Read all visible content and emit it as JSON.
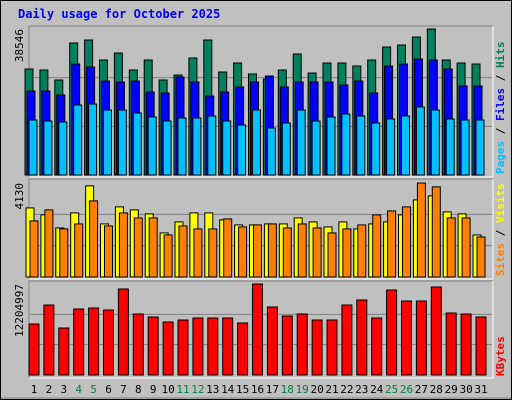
{
  "title": "Daily usage for October 2025",
  "separator": "/",
  "chart_data": [
    {
      "type": "bar",
      "ylim": [
        0,
        38546
      ],
      "yticks": [
        38546
      ],
      "series": [
        {
          "name": "Hits",
          "color": "#00805c",
          "values": [
            27984,
            27720,
            25080,
            34848,
            35640,
            30360,
            32208,
            27720,
            30360,
            25080,
            26400,
            30888,
            35640,
            27192,
            29568,
            26664,
            25344,
            27720,
            31944,
            26928,
            29568,
            29568,
            28776,
            30360,
            33792,
            34320,
            36432,
            38546,
            30360,
            29568,
            29304
          ]
        },
        {
          "name": "Files",
          "color": "#0000ff",
          "values": [
            22176,
            22176,
            21120,
            29304,
            28512,
            24816,
            24552,
            24816,
            21912,
            21648,
            25872,
            24552,
            20856,
            21912,
            23232,
            24552,
            26136,
            23232,
            24552,
            24552,
            24552,
            23760,
            24816,
            21648,
            28776,
            29304,
            30624,
            30360,
            27984,
            23496,
            23496
          ]
        },
        {
          "name": "Pages",
          "color": "#00c0ff",
          "values": [
            14520,
            14256,
            13992,
            18480,
            18744,
            17160,
            17160,
            16368,
            15312,
            14256,
            15048,
            15048,
            15576,
            14256,
            13200,
            17160,
            12408,
            13728,
            17160,
            14256,
            15312,
            16104,
            15576,
            13728,
            14784,
            15576,
            17952,
            17160,
            14784,
            14520,
            14520
          ]
        }
      ]
    },
    {
      "type": "bar",
      "ylim": [
        0,
        4130
      ],
      "yticks": [
        4130
      ],
      "series": [
        {
          "name": "Visits",
          "color": "#ffff00",
          "values": [
            3036,
            2728,
            2156,
            2816,
            4004,
            2332,
            3080,
            2948,
            2772,
            1936,
            2420,
            2816,
            2816,
            2508,
            2288,
            2288,
            2332,
            2332,
            2596,
            2420,
            2200,
            2420,
            2112,
            2332,
            2420,
            2728,
            3388,
            3564,
            2860,
            2772,
            1848
          ]
        },
        {
          "name": "Sites",
          "color": "#ff8000",
          "values": [
            2464,
            2948,
            2112,
            2332,
            3344,
            2244,
            2816,
            2596,
            2596,
            1848,
            2244,
            2112,
            2112,
            2552,
            2200,
            2288,
            2332,
            2156,
            2332,
            2156,
            1936,
            2112,
            2288,
            2728,
            2904,
            3080,
            4130,
            3960,
            2596,
            2596,
            1760
          ]
        }
      ]
    },
    {
      "type": "bar",
      "ylim": [
        0,
        12204997
      ],
      "yticks": [
        12204997
      ],
      "categories": [
        "1",
        "2",
        "3",
        "4",
        "5",
        "6",
        "7",
        "8",
        "9",
        "10",
        "11",
        "12",
        "13",
        "14",
        "15",
        "16",
        "17",
        "18",
        "19",
        "20",
        "21",
        "22",
        "23",
        "24",
        "25",
        "26",
        "27",
        "28",
        "29",
        "30",
        "31"
      ],
      "label_colors": [
        "#000000",
        "#000000",
        "#000000",
        "#008040",
        "#008040",
        "#000000",
        "#000000",
        "#000000",
        "#000000",
        "#000000",
        "#008040",
        "#008040",
        "#000000",
        "#000000",
        "#000000",
        "#000000",
        "#000000",
        "#008040",
        "#008040",
        "#000000",
        "#000000",
        "#000000",
        "#000000",
        "#000000",
        "#008040",
        "#008040",
        "#000000",
        "#000000",
        "#000000",
        "#000000",
        "#000000"
      ],
      "series": [
        {
          "name": "KBytes",
          "color": "#ff0000",
          "values": [
            6840171,
            9388470,
            6303687,
            8851986,
            8986107,
            8717865,
            11534406,
            8181381,
            7779018,
            7108413,
            7376655,
            7644897,
            7644897,
            7644897,
            6974292,
            12204997,
            9120228,
            7913139,
            8181381,
            7376655,
            7376655,
            9388470,
            10059075,
            7644897,
            11400285,
            9924954,
            9924954,
            11802648,
            8315502,
            8181381,
            7779018
          ]
        }
      ]
    }
  ]
}
